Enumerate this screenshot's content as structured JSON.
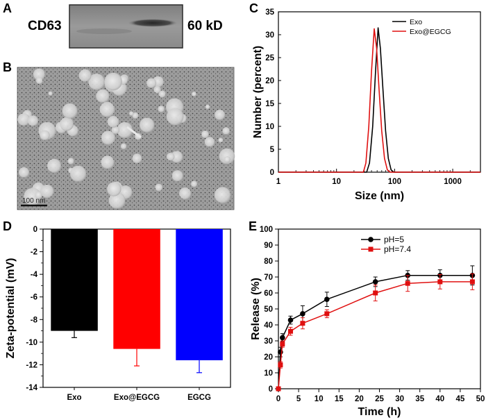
{
  "panels": {
    "A": {
      "letter": "A",
      "label_left": "CD63",
      "label_right": "60 kD"
    },
    "B": {
      "letter": "B",
      "scale_bar": "100 nm"
    }
  },
  "chart_data": [
    {
      "panel": "C",
      "type": "line",
      "title": "",
      "xlabel": "Size (nm)",
      "ylabel": "Number (percent)",
      "xscale": "log",
      "xlim": [
        1,
        3000
      ],
      "ylim": [
        0,
        35
      ],
      "xticks": [
        1,
        10,
        100,
        1000
      ],
      "xtick_labels": [
        "1",
        "10",
        "100",
        "1000"
      ],
      "yticks": [
        0,
        5,
        10,
        15,
        20,
        25,
        30,
        35
      ],
      "ytick_labels": [
        "0",
        "5",
        "10",
        "15",
        "20",
        "25",
        "30",
        "35"
      ],
      "legend_position": "top-right",
      "series": [
        {
          "name": "Exo",
          "color": "#000000",
          "x": [
            1,
            33,
            37,
            42,
            47,
            52,
            57,
            63,
            70,
            78,
            87,
            97,
            3000
          ],
          "y": [
            0,
            0,
            2,
            10,
            22,
            31.5,
            27,
            18,
            9,
            3,
            0.5,
            0,
            0
          ]
        },
        {
          "name": "Exo@EGCG",
          "color": "#e01010",
          "x": [
            1,
            29,
            32,
            36,
            40,
            44.5,
            49,
            54,
            60,
            67,
            75,
            84,
            3000
          ],
          "y": [
            0,
            0,
            2,
            10,
            22,
            31.3,
            27,
            18,
            9,
            3,
            0.5,
            0,
            0
          ]
        }
      ]
    },
    {
      "panel": "D",
      "type": "bar",
      "title": "",
      "xlabel": "",
      "ylabel": "Zeta-potential (mV)",
      "ylim": [
        -14,
        0
      ],
      "yticks": [
        0,
        -2,
        -4,
        -6,
        -8,
        -10,
        -12,
        -14
      ],
      "ytick_labels": [
        "0",
        "-2",
        "-4",
        "-6",
        "-8",
        "-10",
        "-12",
        "-14"
      ],
      "categories": [
        "Exo",
        "Exo@EGCG",
        "EGCG"
      ],
      "values": [
        -9.0,
        -10.6,
        -11.6
      ],
      "errors": [
        0.6,
        1.5,
        1.1
      ],
      "colors": [
        "#000000",
        "#ff0000",
        "#0000ff"
      ]
    },
    {
      "panel": "E",
      "type": "line",
      "title": "",
      "xlabel": "Time (h)",
      "ylabel": "Release (%)",
      "xlim": [
        0,
        50
      ],
      "ylim": [
        0,
        100
      ],
      "xticks": [
        0,
        5,
        10,
        15,
        20,
        25,
        30,
        35,
        40,
        45,
        50
      ],
      "xtick_labels": [
        "0",
        "5",
        "10",
        "15",
        "20",
        "25",
        "30",
        "35",
        "40",
        "45",
        "50"
      ],
      "yticks": [
        0,
        10,
        20,
        30,
        40,
        50,
        60,
        70,
        80,
        90,
        100
      ],
      "ytick_labels": [
        "0",
        "10",
        "20",
        "30",
        "40",
        "50",
        "60",
        "70",
        "80",
        "90",
        "100"
      ],
      "legend_position": "top-left",
      "series": [
        {
          "name": "pH=5",
          "color": "#000000",
          "marker": "circle",
          "x": [
            0,
            0.5,
            1,
            3,
            6,
            12,
            24,
            32,
            40,
            48
          ],
          "y": [
            0,
            23,
            32,
            43,
            47,
            56,
            67,
            71,
            71,
            71
          ],
          "errors": [
            0,
            3,
            2.5,
            2.5,
            5,
            4.5,
            3,
            3,
            3.5,
            6
          ]
        },
        {
          "name": "pH=7.4",
          "color": "#e01010",
          "marker": "square",
          "x": [
            0,
            0.5,
            1,
            3,
            6,
            12,
            24,
            32,
            40,
            48
          ],
          "y": [
            0,
            15,
            28,
            36,
            41,
            47,
            60,
            66,
            67,
            67
          ],
          "errors": [
            0,
            2,
            2,
            2.5,
            3.5,
            2.5,
            5,
            5,
            4.5,
            5
          ]
        }
      ]
    }
  ]
}
